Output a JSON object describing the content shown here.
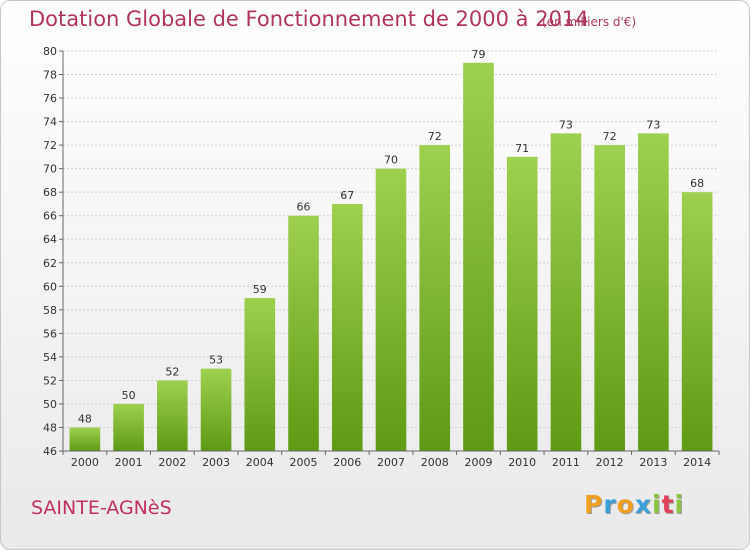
{
  "title": "Dotation Globale de Fonctionnement de 2000 à 2014",
  "subtitle": "(en milliers d'€)",
  "commune": "SAINTE-AGNèS",
  "logo": {
    "letters": [
      "P",
      "r",
      "o",
      "x",
      "i",
      "t",
      "i"
    ],
    "colors": [
      "#f0a020",
      "#3aa0d8",
      "#f0a020",
      "#3aa0d8",
      "#8cc63f",
      "#e0405a",
      "#8cc63f"
    ]
  },
  "colors": {
    "bar_light": "#9ed04f",
    "bar_dark": "#5e9a14",
    "title": "#b0355d"
  },
  "chart_data": {
    "type": "bar",
    "categories": [
      "2000",
      "2001",
      "2002",
      "2003",
      "2004",
      "2005",
      "2006",
      "2007",
      "2008",
      "2009",
      "2010",
      "2011",
      "2012",
      "2013",
      "2014"
    ],
    "values": [
      48,
      50,
      52,
      53,
      59,
      66,
      67,
      70,
      72,
      79,
      71,
      73,
      72,
      73,
      68
    ],
    "ylim": [
      46,
      80
    ],
    "yticks": [
      46,
      48,
      50,
      52,
      54,
      56,
      58,
      60,
      62,
      64,
      66,
      68,
      70,
      72,
      74,
      76,
      78,
      80
    ],
    "grid": true,
    "xlabel": "",
    "ylabel": ""
  }
}
